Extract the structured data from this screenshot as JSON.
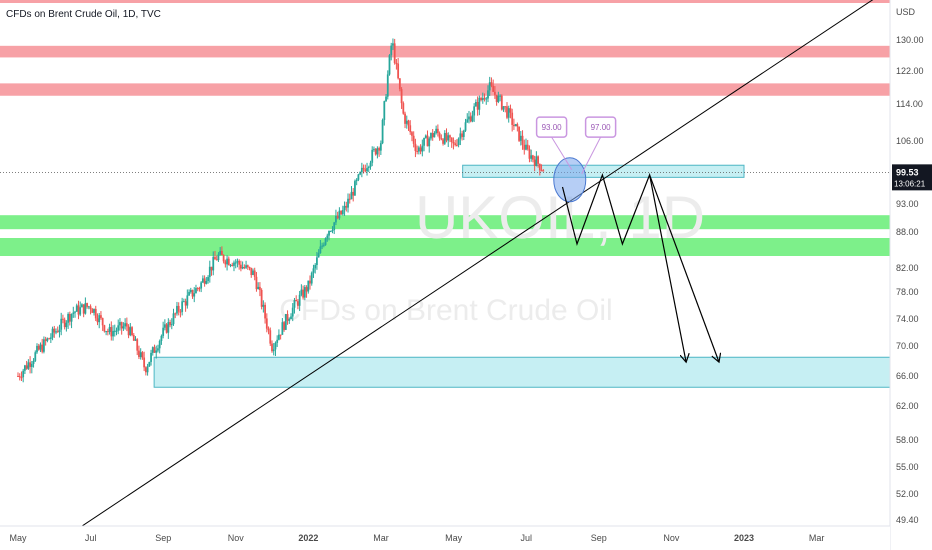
{
  "header": {
    "title": "CFDs on Brent Crude Oil, 1D, TVC",
    "currency": "USD"
  },
  "watermark": {
    "symbol": "UKOIL, 1D",
    "name": "CFDs on Brent Crude Oil"
  },
  "price_label": {
    "price": "99.53",
    "countdown": "13:06:21"
  },
  "colors": {
    "up": "#26a69a",
    "down": "#ef5350",
    "resistance_zone": "#f7a1a6",
    "support_zone": "#7df08a",
    "demand_zone": "#c6eff3",
    "demand_border": "#4db6c4",
    "callout": "#c996e0"
  },
  "chart_data": {
    "type": "candlestick",
    "title": "CFDs on Brent Crude Oil, 1D, TVC",
    "ylabel": "USD",
    "y_ticks": [
      130.0,
      122.0,
      114.0,
      106.0,
      93.0,
      88.0,
      82.0,
      78.0,
      74.0,
      70.0,
      66.0,
      62.0,
      58.0,
      55.0,
      52.0,
      49.4
    ],
    "x_ticks": [
      "May",
      "Jul",
      "Sep",
      "Nov",
      "2022",
      "Mar",
      "May",
      "Jul",
      "Sep",
      "Nov",
      "2023",
      "Mar"
    ],
    "x_tick_months": [
      0,
      2,
      4,
      6,
      8,
      10,
      12,
      14,
      16,
      18,
      20,
      22
    ],
    "price_path": [
      [
        0,
        66
      ],
      [
        0.5,
        69
      ],
      [
        1,
        72
      ],
      [
        1.5,
        75
      ],
      [
        2,
        76
      ],
      [
        2.5,
        72
      ],
      [
        3,
        73
      ],
      [
        3.5,
        67
      ],
      [
        4,
        72
      ],
      [
        4.5,
        76
      ],
      [
        5,
        79
      ],
      [
        5.5,
        84
      ],
      [
        6,
        83
      ],
      [
        6.5,
        81
      ],
      [
        7,
        70
      ],
      [
        7.5,
        75
      ],
      [
        8,
        79
      ],
      [
        8.5,
        88
      ],
      [
        9,
        92
      ],
      [
        9.5,
        100
      ],
      [
        10,
        106
      ],
      [
        10.3,
        130
      ],
      [
        10.6,
        112
      ],
      [
        11,
        104
      ],
      [
        11.5,
        108
      ],
      [
        12,
        105
      ],
      [
        12.5,
        112
      ],
      [
        13,
        118
      ],
      [
        13.5,
        112
      ],
      [
        14,
        104
      ],
      [
        14.5,
        100
      ]
    ],
    "resistance_zones": [
      [
        125.5,
        128.5
      ],
      [
        116,
        119
      ]
    ],
    "support_zones": [
      [
        88.5,
        91
      ],
      [
        84,
        87
      ]
    ],
    "demand_zones": [
      {
        "x_range": [
          12.25,
          20.0
        ],
        "y_range": [
          98.5,
          101
        ]
      },
      {
        "x_range": [
          3.75,
          24.15
        ],
        "y_range": [
          64.5,
          68.5
        ]
      }
    ],
    "trendline": {
      "from": [
        0.4,
        45.5
      ],
      "to": [
        23.85,
        144
      ]
    },
    "projection_path": [
      [
        15.0,
        96.5
      ],
      [
        15.4,
        86
      ],
      [
        16.1,
        99
      ],
      [
        16.65,
        86
      ],
      [
        17.4,
        99
      ],
      [
        18.4,
        68
      ]
    ],
    "projection_path_2": [
      [
        17.4,
        99
      ],
      [
        19.3,
        68
      ]
    ],
    "annotations": [
      {
        "text": "93.00",
        "at": [
          14.7,
          109
        ]
      },
      {
        "text": "97.00",
        "at": [
          16.05,
          109
        ]
      }
    ],
    "last_price": 99.53
  }
}
